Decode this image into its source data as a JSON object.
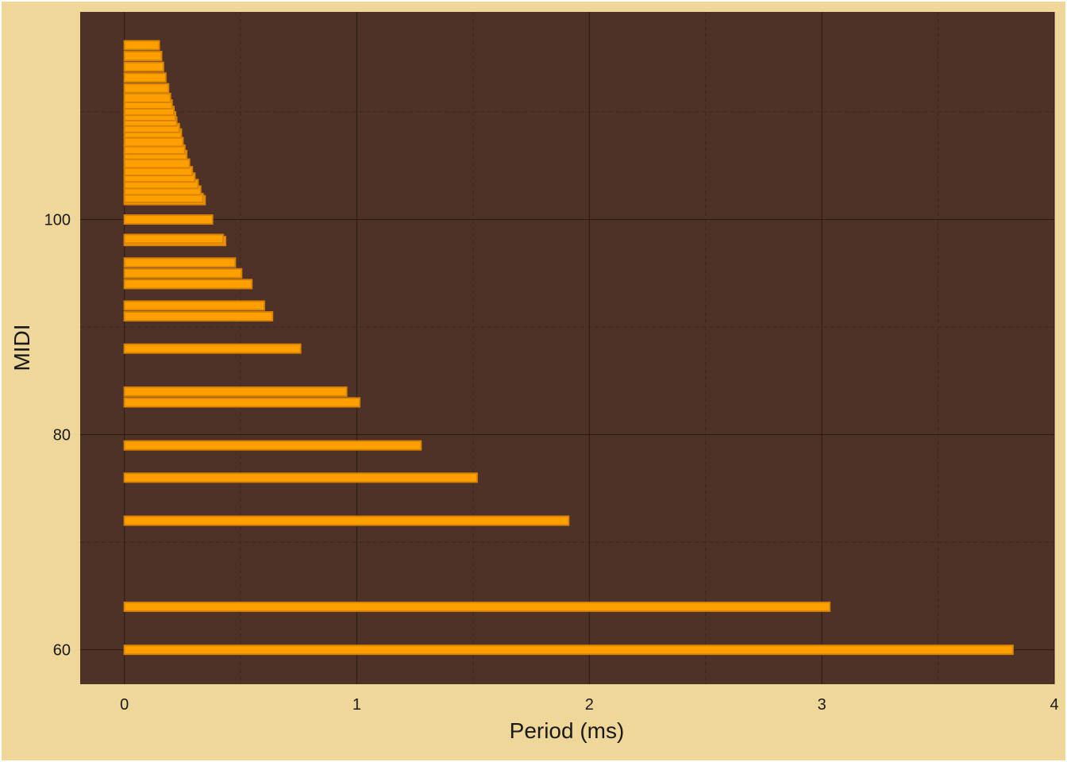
{
  "chart_data": {
    "type": "bar",
    "orientation": "horizontal",
    "title": "",
    "xlabel": "Period (ms)",
    "ylabel": "MIDI",
    "xlim": [
      -0.19,
      4.0
    ],
    "ylim": [
      56.8,
      119.3
    ],
    "xticks": [
      0,
      1,
      2,
      3,
      4
    ],
    "yticks": [
      60,
      80,
      100
    ],
    "grid": true,
    "colors": {
      "page_background": "#efd699",
      "panel_background": "#4e3227",
      "major_grid": "#2b1a13",
      "minor_grid": "#3d271e",
      "bar_fill": "#ffa000",
      "bar_edge": "#d98400"
    },
    "series": [
      {
        "points": [
          {
            "midi": 60,
            "period": 3.822
          },
          {
            "midi": 64,
            "period": 3.034
          },
          {
            "midi": 72,
            "period": 1.911
          },
          {
            "midi": 76,
            "period": 1.517
          },
          {
            "midi": 79,
            "period": 1.276
          },
          {
            "midi": 83,
            "period": 1.012
          },
          {
            "midi": 84,
            "period": 0.956
          },
          {
            "midi": 88,
            "period": 0.758
          },
          {
            "midi": 91,
            "period": 0.637
          },
          {
            "midi": 92,
            "period": 0.602
          },
          {
            "midi": 94,
            "period": 0.548
          },
          {
            "midi": 95,
            "period": 0.504
          },
          {
            "midi": 96,
            "period": 0.477
          },
          {
            "midi": 98,
            "period": 0.435
          },
          {
            "midi": 98.2,
            "period": 0.425
          },
          {
            "midi": 100,
            "period": 0.379
          },
          {
            "midi": 101.8,
            "period": 0.347
          },
          {
            "midi": 102,
            "period": 0.338
          },
          {
            "midi": 102.7,
            "period": 0.328
          },
          {
            "midi": 103.3,
            "period": 0.317
          },
          {
            "midi": 103.9,
            "period": 0.303
          },
          {
            "midi": 104.5,
            "period": 0.292
          },
          {
            "midi": 105.2,
            "period": 0.28
          },
          {
            "midi": 106,
            "period": 0.268
          },
          {
            "midi": 106.5,
            "period": 0.26
          },
          {
            "midi": 107.2,
            "period": 0.252
          },
          {
            "midi": 108,
            "period": 0.245
          },
          {
            "midi": 108.5,
            "period": 0.236
          },
          {
            "midi": 109.1,
            "period": 0.225
          },
          {
            "midi": 109.6,
            "period": 0.22
          },
          {
            "midi": 110.1,
            "period": 0.213
          },
          {
            "midi": 110.7,
            "period": 0.205
          },
          {
            "midi": 111.3,
            "period": 0.198
          },
          {
            "midi": 112.2,
            "period": 0.19
          },
          {
            "midi": 113.2,
            "period": 0.178
          },
          {
            "midi": 114.2,
            "period": 0.168
          },
          {
            "midi": 115.2,
            "period": 0.16
          },
          {
            "midi": 116.2,
            "period": 0.15
          }
        ]
      }
    ]
  }
}
